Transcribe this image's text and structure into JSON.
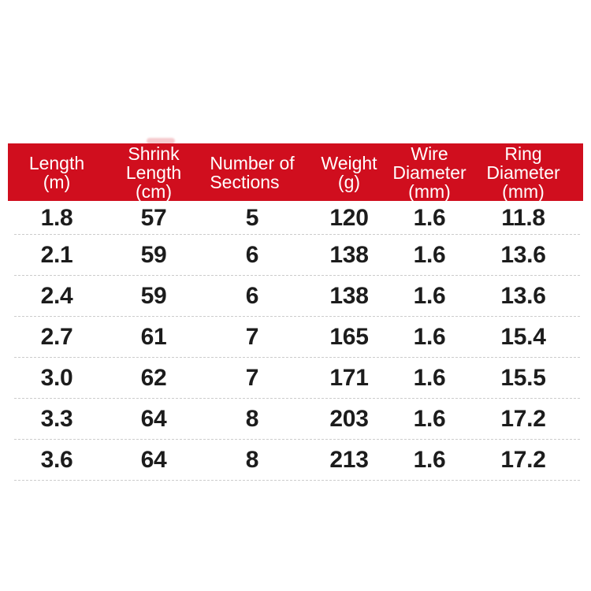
{
  "colors": {
    "header_bg": "#d00e1e",
    "header_text": "#ffffff",
    "value_text": "#1c1c1c",
    "divider": "#cccccc",
    "page_bg": "#ffffff"
  },
  "chart_data": {
    "type": "table",
    "columns": [
      "Length\n(m)",
      "Shrink\nLength\n(cm)",
      "Number of\nSections",
      "Weight\n(g)",
      "Wire\nDiameter\n(mm)",
      "Ring\nDiameter\n(mm)"
    ],
    "rows": [
      [
        "1.8",
        "57",
        "5",
        "120",
        "1.6",
        "11.8"
      ],
      [
        "2.1",
        "59",
        "6",
        "138",
        "1.6",
        "13.6"
      ],
      [
        "2.4",
        "59",
        "6",
        "138",
        "1.6",
        "13.6"
      ],
      [
        "2.7",
        "61",
        "7",
        "165",
        "1.6",
        "15.4"
      ],
      [
        "3.0",
        "62",
        "7",
        "171",
        "1.6",
        "15.5"
      ],
      [
        "3.3",
        "64",
        "8",
        "203",
        "1.6",
        "17.2"
      ],
      [
        "3.6",
        "64",
        "8",
        "213",
        "1.6",
        "17.2"
      ]
    ]
  }
}
